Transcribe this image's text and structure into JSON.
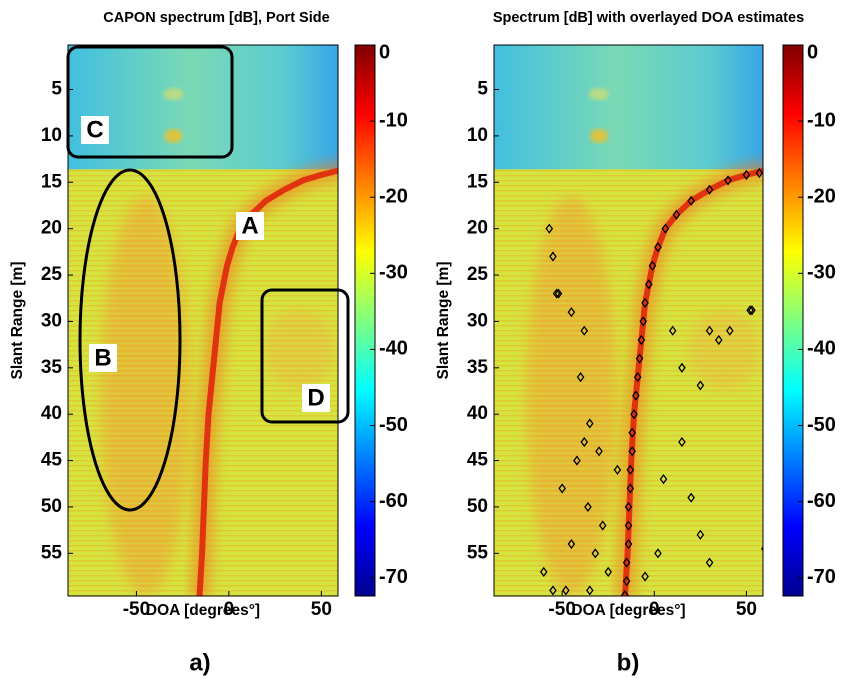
{
  "chart_data": [
    {
      "type": "heatmap",
      "title": "CAPON spectrum [dB], Port Side",
      "xlabel": "DOA [degrees°]",
      "ylabel": "Slant Range [m]",
      "xlim": [
        -87,
        59
      ],
      "xticks": [
        -50,
        0,
        50
      ],
      "ylim": [
        59.6,
        0.2
      ],
      "yticks": [
        5,
        10,
        15,
        20,
        25,
        30,
        35,
        40,
        45,
        50,
        55
      ],
      "colormap": "jet",
      "clim": [
        -72.4,
        0
      ],
      "cticks": [
        0,
        -10,
        -20,
        -30,
        -40,
        -50,
        -60,
        -70
      ],
      "annotations": [
        "A",
        "B",
        "C",
        "D"
      ],
      "panel_label": "a)"
    },
    {
      "type": "scatter",
      "title": "Spectrum [dB] with overlayed DOA estimates",
      "xlabel": "DOA [degrees°]",
      "ylabel": "Slant Range [m]",
      "xlim": [
        -87,
        59
      ],
      "xticks": [
        -50,
        0,
        50
      ],
      "ylim": [
        59.6,
        0.2
      ],
      "yticks": [
        5,
        10,
        15,
        20,
        25,
        30,
        35,
        40,
        45,
        50,
        55
      ],
      "colormap": "jet",
      "clim": [
        -72.4,
        0
      ],
      "cticks": [
        0,
        -10,
        -20,
        -30,
        -40,
        -50,
        -60,
        -70
      ],
      "marker_color": "#000000",
      "x": [
        57,
        50,
        40,
        30,
        20,
        12,
        6,
        2,
        -1,
        -3,
        -5,
        -6,
        -7,
        -8,
        -9,
        -10,
        -11,
        -12,
        -12,
        -13,
        -13,
        -14,
        -14,
        -14,
        -15,
        -15,
        -16,
        -57,
        -55,
        -52,
        -53,
        -45,
        -38,
        -40,
        -35,
        -38,
        -30,
        -42,
        -50,
        -36,
        -28,
        -45,
        -32,
        -25,
        -48,
        -55,
        -35,
        10,
        30,
        35,
        41,
        52,
        53,
        25,
        15,
        5,
        20,
        25,
        30,
        2,
        -5,
        60,
        15,
        -20,
        -60
      ],
      "y": [
        14,
        14.2,
        14.8,
        15.8,
        17,
        18.5,
        20,
        22,
        24,
        26,
        28,
        30,
        32,
        34,
        36,
        38,
        40,
        42,
        44,
        46,
        48,
        50,
        52,
        54,
        56,
        58,
        59.5,
        20,
        23,
        27,
        27,
        29,
        31,
        36,
        41,
        43,
        44,
        45,
        48,
        50,
        52,
        54,
        55,
        57,
        59,
        59,
        59,
        31,
        31,
        32,
        31,
        28.8,
        28.8,
        36.9,
        35,
        47,
        49,
        53,
        56,
        55,
        57.5,
        54.5,
        43,
        46,
        57
      ],
      "panel_label": "b)"
    }
  ]
}
